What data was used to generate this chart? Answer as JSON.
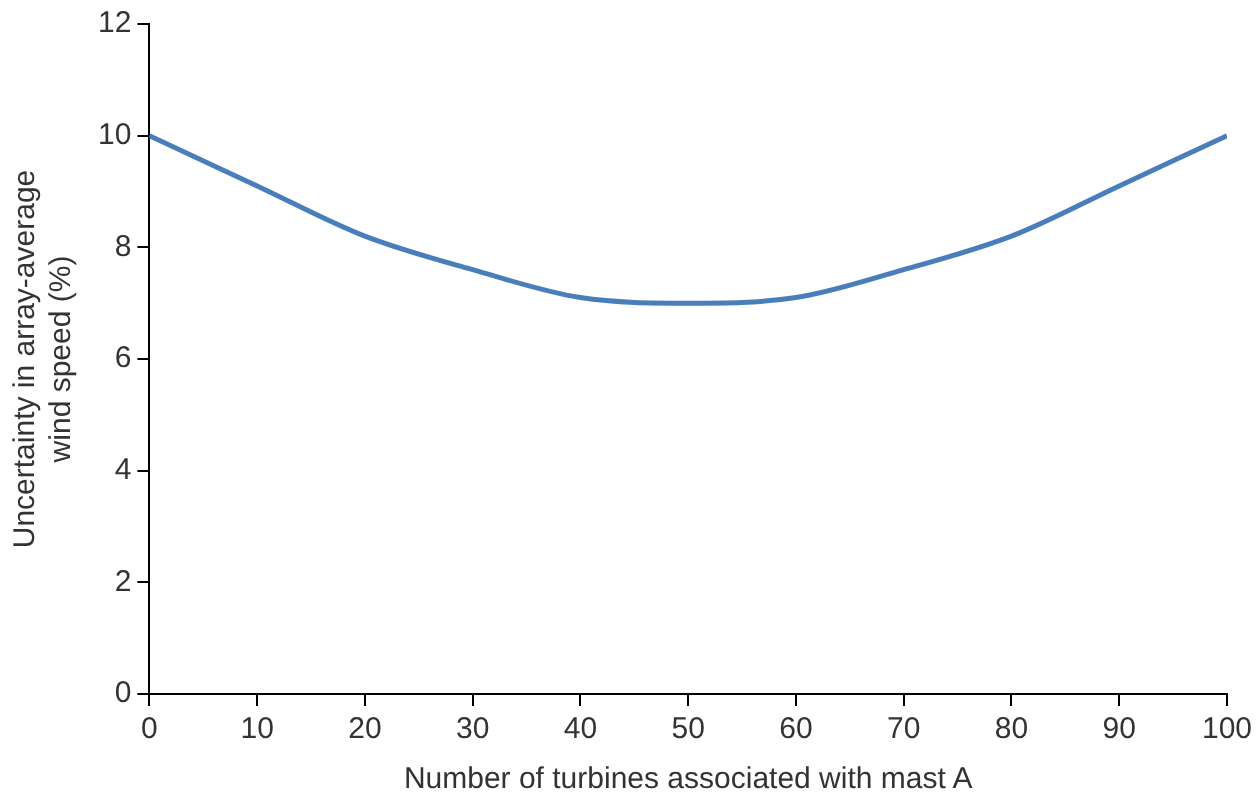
{
  "chart_data": {
    "type": "line",
    "xlabel": "Number of turbines associated with mast A",
    "ylabel": "Uncertainty in array-average wind speed (%)",
    "x": [
      0,
      10,
      20,
      30,
      40,
      50,
      60,
      70,
      80,
      90,
      100
    ],
    "series": [
      {
        "color": "#4a7ebb",
        "values": [
          10,
          9.1,
          8.2,
          7.6,
          7.1,
          7.0,
          7.1,
          7.6,
          8.2,
          9.1,
          10
        ]
      }
    ],
    "xlim": [
      0,
      100
    ],
    "xticks": [
      0,
      10,
      20,
      30,
      40,
      50,
      60,
      70,
      80,
      90,
      100
    ],
    "ylim": [
      0,
      12
    ],
    "yticks": [
      0,
      2,
      4,
      6,
      8,
      10,
      12
    ],
    "grid": false,
    "legend": false,
    "marker": "none",
    "line_style": "solid"
  }
}
